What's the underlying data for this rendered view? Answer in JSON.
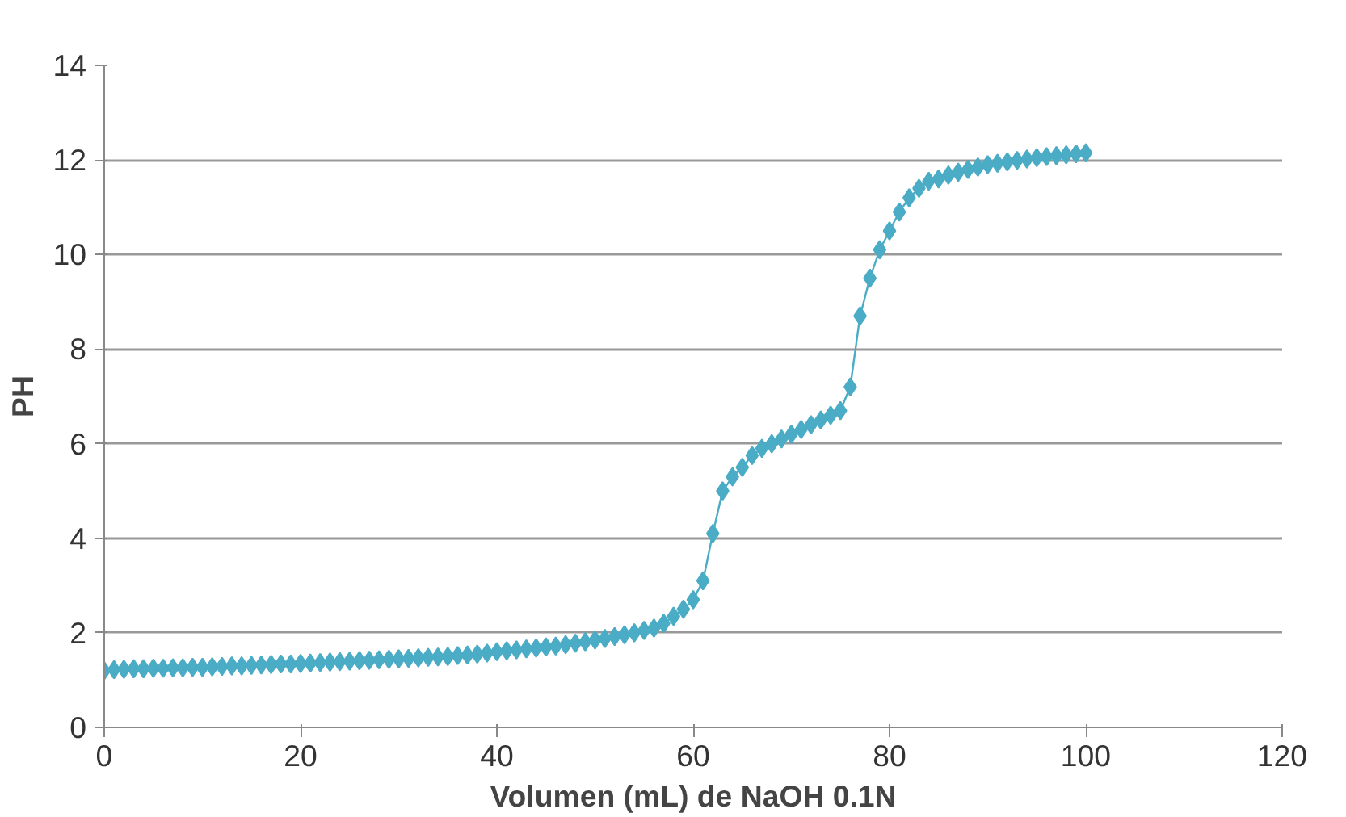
{
  "chart_data": {
    "type": "line",
    "xlabel": "Volumen (mL) de NaOH 0.1N",
    "ylabel": "PH",
    "xlim": [
      0,
      120
    ],
    "xticks": [
      0,
      20,
      40,
      60,
      80,
      100,
      120
    ],
    "ylim": [
      0,
      14
    ],
    "yticks": [
      0,
      2,
      4,
      6,
      8,
      10,
      12,
      14
    ],
    "grid": "y",
    "marker": "diamond",
    "line_style": "solid",
    "x": [
      0,
      1,
      2,
      3,
      4,
      5,
      6,
      7,
      8,
      9,
      10,
      11,
      12,
      13,
      14,
      15,
      16,
      17,
      18,
      19,
      20,
      21,
      22,
      23,
      24,
      25,
      26,
      27,
      28,
      29,
      30,
      31,
      32,
      33,
      34,
      35,
      36,
      37,
      38,
      39,
      40,
      41,
      42,
      43,
      44,
      45,
      46,
      47,
      48,
      49,
      50,
      51,
      52,
      53,
      54,
      55,
      56,
      57,
      58,
      59,
      60,
      61,
      62,
      63,
      64,
      65,
      66,
      67,
      68,
      69,
      70,
      71,
      72,
      73,
      74,
      75,
      76,
      77,
      78,
      79,
      80,
      81,
      82,
      83,
      84,
      85,
      86,
      87,
      88,
      89,
      90,
      91,
      92,
      93,
      94,
      95,
      96,
      97,
      98,
      99,
      100
    ],
    "series": [
      {
        "color": "#4bacc6",
        "values": [
          1.2,
          1.22,
          1.23,
          1.24,
          1.24,
          1.25,
          1.25,
          1.26,
          1.26,
          1.27,
          1.27,
          1.28,
          1.29,
          1.3,
          1.3,
          1.31,
          1.32,
          1.33,
          1.34,
          1.34,
          1.35,
          1.36,
          1.37,
          1.38,
          1.39,
          1.4,
          1.41,
          1.42,
          1.43,
          1.44,
          1.45,
          1.46,
          1.47,
          1.48,
          1.49,
          1.5,
          1.52,
          1.53,
          1.55,
          1.57,
          1.6,
          1.62,
          1.64,
          1.66,
          1.68,
          1.7,
          1.72,
          1.75,
          1.78,
          1.81,
          1.85,
          1.88,
          1.92,
          1.96,
          2.0,
          2.05,
          2.1,
          2.2,
          2.35,
          2.5,
          2.7,
          3.1,
          4.1,
          5.0,
          5.3,
          5.5,
          5.75,
          5.9,
          6.0,
          6.1,
          6.2,
          6.3,
          6.4,
          6.5,
          6.6,
          6.7,
          7.2,
          8.7,
          9.5,
          10.1,
          10.5,
          10.9,
          11.2,
          11.4,
          11.55,
          11.6,
          11.68,
          11.74,
          11.8,
          11.85,
          11.9,
          11.93,
          11.96,
          11.99,
          12.02,
          12.05,
          12.07,
          12.09,
          12.11,
          12.13,
          12.15
        ]
      }
    ]
  }
}
